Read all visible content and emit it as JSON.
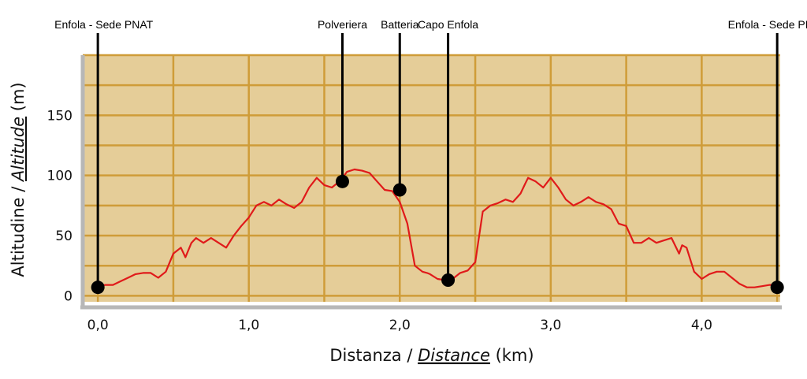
{
  "chart_data": {
    "type": "line",
    "xlabel_plain": "Distanza / ",
    "xlabel_italic": "Distance",
    "xlabel_unit": " (km)",
    "ylabel_plain": "Altitudine / ",
    "ylabel_italic": "Altitude",
    "ylabel_unit": " (m)",
    "xlim": [
      -0.1,
      4.52
    ],
    "ylim": [
      -5,
      200
    ],
    "x_ticks": [
      {
        "value": 0,
        "label": "0,0"
      },
      {
        "value": 1,
        "label": "1,0"
      },
      {
        "value": 2,
        "label": "2,0"
      },
      {
        "value": 3,
        "label": "3,0"
      },
      {
        "value": 4,
        "label": "4,0"
      }
    ],
    "y_ticks": [
      {
        "value": 0,
        "label": "0"
      },
      {
        "value": 50,
        "label": "50"
      },
      {
        "value": 100,
        "label": "100"
      },
      {
        "value": 150,
        "label": "150"
      }
    ],
    "grid": true,
    "colors": {
      "panel": "#e5cd98",
      "grid": "#cf9c38",
      "axis": "#b7b7b7",
      "line": "#e01a1a",
      "marker": "#000000"
    },
    "series": [
      {
        "x": [
          0.0,
          0.05,
          0.1,
          0.15,
          0.2,
          0.25,
          0.3,
          0.35,
          0.4,
          0.45,
          0.5,
          0.55,
          0.58,
          0.62,
          0.65,
          0.7,
          0.75,
          0.8,
          0.85,
          0.9,
          0.95,
          1.0,
          1.05,
          1.1,
          1.15,
          1.2,
          1.25,
          1.3,
          1.35,
          1.4,
          1.45,
          1.5,
          1.55,
          1.6,
          1.62,
          1.65,
          1.7,
          1.75,
          1.8,
          1.85,
          1.9,
          1.95,
          2.0,
          2.05,
          2.1,
          2.15,
          2.18,
          2.2,
          2.25,
          2.3,
          2.35,
          2.4,
          2.45,
          2.5,
          2.52,
          2.55,
          2.6,
          2.65,
          2.7,
          2.75,
          2.8,
          2.83,
          2.85,
          2.9,
          2.95,
          3.0,
          3.05,
          3.1,
          3.15,
          3.2,
          3.25,
          3.3,
          3.35,
          3.4,
          3.45,
          3.5,
          3.55,
          3.6,
          3.65,
          3.7,
          3.75,
          3.8,
          3.85,
          3.87,
          3.9,
          3.95,
          4.0,
          4.05,
          4.1,
          4.15,
          4.2,
          4.25,
          4.3,
          4.35,
          4.4,
          4.45,
          4.5
        ],
        "y": [
          8,
          9,
          9,
          12,
          15,
          18,
          19,
          19,
          15,
          20,
          35,
          40,
          32,
          44,
          48,
          44,
          48,
          44,
          40,
          50,
          58,
          65,
          75,
          78,
          75,
          80,
          76,
          73,
          78,
          90,
          98,
          92,
          90,
          95,
          98,
          103,
          105,
          104,
          102,
          95,
          88,
          87,
          78,
          60,
          25,
          20,
          19,
          18,
          14,
          13,
          14,
          19,
          21,
          28,
          45,
          70,
          75,
          77,
          80,
          78,
          85,
          93,
          98,
          95,
          90,
          98,
          90,
          80,
          75,
          78,
          82,
          78,
          76,
          72,
          60,
          58,
          44,
          44,
          48,
          44,
          46,
          48,
          35,
          42,
          40,
          20,
          14,
          18,
          20,
          20,
          15,
          10,
          7,
          7,
          8,
          9,
          9
        ]
      }
    ],
    "markers": [
      {
        "x": 0.0,
        "y": 7,
        "label": "Enfola - Sede PNAT",
        "label_plain": "",
        "label_underlined": "Enfola",
        "label_rest": " - Sede PNAT",
        "anchor": "start"
      },
      {
        "x": 1.62,
        "y": 95,
        "label": "Polveriera",
        "label_plain": "Polveriera",
        "label_underlined": "",
        "label_rest": "",
        "anchor": "middle"
      },
      {
        "x": 2.0,
        "y": 88,
        "label": "Batteria",
        "label_plain": "Batteria",
        "label_underlined": "",
        "label_rest": "",
        "anchor": "middle"
      },
      {
        "x": 2.32,
        "y": 13,
        "label": "Capo Enfola",
        "label_plain": "Capo ",
        "label_underlined": "Enfola",
        "label_rest": "",
        "anchor": "middle"
      },
      {
        "x": 4.5,
        "y": 7,
        "label": "Enfola - Sede PNAT",
        "label_plain": "",
        "label_underlined": "Enfola",
        "label_rest": " - Sede PNAT",
        "anchor": "middle"
      }
    ]
  }
}
